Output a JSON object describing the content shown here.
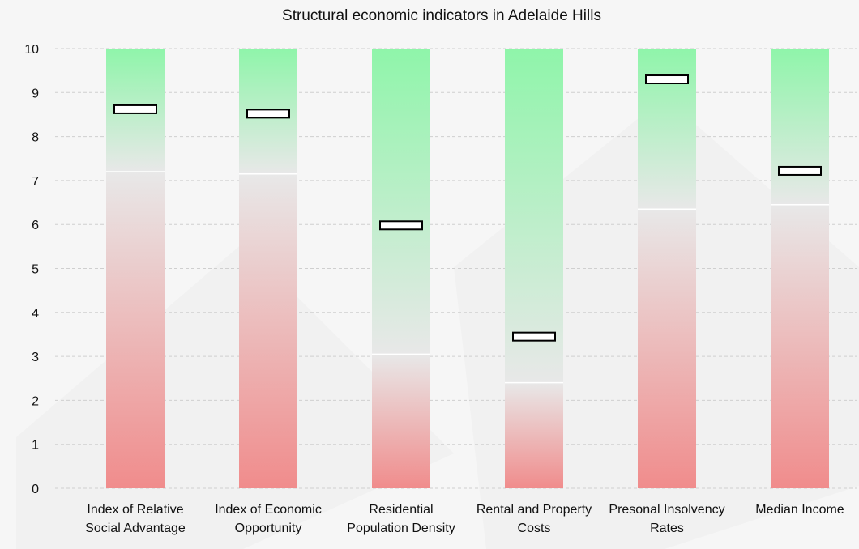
{
  "chart_data": {
    "type": "bar",
    "title": "Structural economic indicators in Adelaide Hills",
    "xlabel": "",
    "ylabel": "",
    "ylim": [
      0,
      10
    ],
    "yticks": [
      0,
      1,
      2,
      3,
      4,
      5,
      6,
      7,
      8,
      9,
      10
    ],
    "grid": true,
    "categories": [
      [
        "Index of Relative",
        "Social Advantage"
      ],
      [
        "Index of Economic",
        "Opportunity"
      ],
      [
        "Residential",
        "Population Density"
      ],
      [
        "Rental and Property",
        "Costs"
      ],
      [
        "Presonal Insolvency",
        "Rates"
      ],
      [
        "Median Income"
      ]
    ],
    "series": [
      {
        "values": [
          7.2,
          7.15,
          3.05,
          2.4,
          6.35,
          6.45
        ]
      },
      {
        "values": [
          8.62,
          8.52,
          5.98,
          3.45,
          9.3,
          7.22
        ]
      }
    ],
    "colors": {
      "low": "#f08c8c",
      "mid": "#e8e8e8",
      "high": "#8ff5aa",
      "grid": "#cfcfcf",
      "marker_border": "#000000",
      "marker_fill": "#ffffff",
      "divider": "#ffffff"
    }
  }
}
